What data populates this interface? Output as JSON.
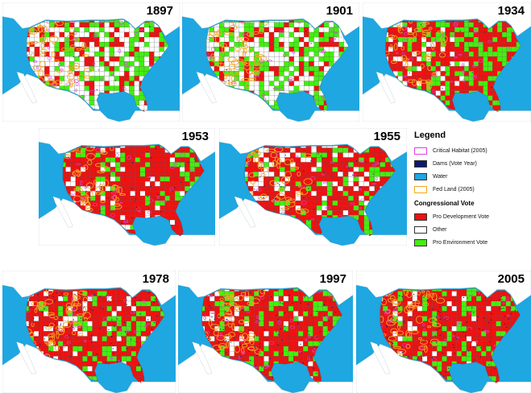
{
  "panels": [
    {
      "year": "1897",
      "pro_development_share": 0.22,
      "pro_environment_share": 0.33,
      "fed_land_density": 0.6,
      "dams_level": 0.05
    },
    {
      "year": "1901",
      "pro_development_share": 0.18,
      "pro_environment_share": 0.36,
      "fed_land_density": 0.65,
      "dams_level": 0.05
    },
    {
      "year": "1934",
      "pro_development_share": 0.55,
      "pro_environment_share": 0.35,
      "fed_land_density": 0.55,
      "dams_level": 0.1
    },
    {
      "year": "1953",
      "pro_development_share": 0.72,
      "pro_environment_share": 0.16,
      "fed_land_density": 0.55,
      "dams_level": 0.2
    },
    {
      "year": "1955",
      "pro_development_share": 0.65,
      "pro_environment_share": 0.2,
      "fed_land_density": 0.55,
      "dams_level": 0.2
    },
    {
      "year": "1978",
      "pro_development_share": 0.65,
      "pro_environment_share": 0.2,
      "fed_land_density": 0.65,
      "dams_level": 0.55
    },
    {
      "year": "1997",
      "pro_development_share": 0.7,
      "pro_environment_share": 0.22,
      "fed_land_density": 0.65,
      "dams_level": 0.65
    },
    {
      "year": "2005",
      "pro_development_share": 0.72,
      "pro_environment_share": 0.2,
      "fed_land_density": 0.65,
      "dams_level": 0.7
    }
  ],
  "legend": {
    "title": "Legend",
    "items": [
      {
        "label": "Critical Habitat (2005)",
        "color": "#e040e0",
        "style": "outline"
      },
      {
        "label": "Dams (Vote Year)",
        "color": "#0a1a6e",
        "style": "fill"
      },
      {
        "label": "Water",
        "color": "#1ea7e1",
        "style": "fill"
      },
      {
        "label": "Fed Land (2005)",
        "color": "#f5a623",
        "style": "outline"
      }
    ],
    "subtitle": "Congressional Vote",
    "vote_items": [
      {
        "label": "Pro Development Vote",
        "color": "#ee1111",
        "style": "fill"
      },
      {
        "label": "Other",
        "color": "#ffffff",
        "style": "fill"
      },
      {
        "label": "Pro Environment Vote",
        "color": "#44ee11",
        "style": "fill"
      }
    ]
  },
  "colors": {
    "water": "#1ea7e1",
    "land": "#ffffff",
    "canada": "#ffffff",
    "mexico": "#ffffff",
    "pro_development": "#ee1111",
    "pro_environment": "#44ee11",
    "fed_land": "#f5a623",
    "critical_habitat": "#e040e0",
    "dams": "#0a1a6e"
  }
}
